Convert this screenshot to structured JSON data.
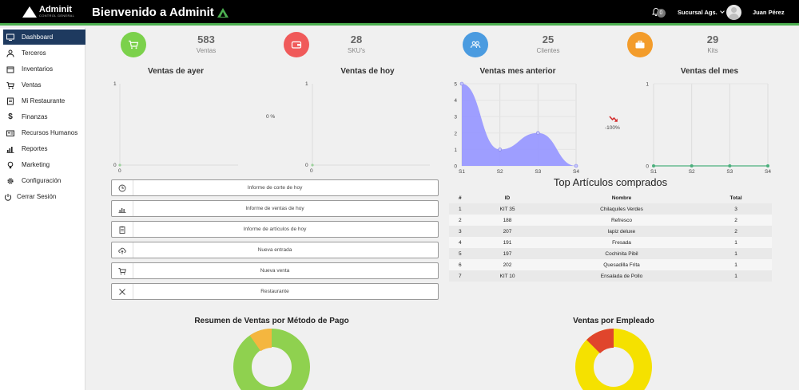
{
  "header": {
    "logo_name": "Adminit",
    "logo_sub": "CONTROL GENERAL",
    "welcome": "Bienvenido a Adminit",
    "notifications": "0",
    "branch": "Sucursal Ags.",
    "user": "Juan Pérez"
  },
  "sidebar": {
    "items": [
      {
        "label": "Dashboard",
        "icon": "monitor-icon"
      },
      {
        "label": "Terceros",
        "icon": "user-icon"
      },
      {
        "label": "Inventarios",
        "icon": "box-icon"
      },
      {
        "label": "Ventas",
        "icon": "cart-icon"
      },
      {
        "label": "Mi Restaurante",
        "icon": "book-icon"
      },
      {
        "label": "Finanzas",
        "icon": "dollar-icon"
      },
      {
        "label": "Recursos Humanos",
        "icon": "id-card-icon"
      },
      {
        "label": "Reportes",
        "icon": "bar-chart-icon"
      },
      {
        "label": "Marketing",
        "icon": "bulb-icon"
      },
      {
        "label": "Configuración",
        "icon": "gear-icon"
      },
      {
        "label": "Cerrar Sesión",
        "icon": "power-icon"
      }
    ]
  },
  "stats": [
    {
      "value": "583",
      "label": "Ventas",
      "color": "#7bd14b",
      "icon": "cart-icon"
    },
    {
      "value": "28",
      "label": "SKU's",
      "color": "#f05a5a",
      "icon": "wallet-icon"
    },
    {
      "value": "25",
      "label": "Clientes",
      "color": "#4a9be0",
      "icon": "users-icon"
    },
    {
      "value": "29",
      "label": "Kits",
      "color": "#f39c2b",
      "icon": "briefcase-icon"
    }
  ],
  "charts": {
    "ayer": {
      "title": "Ventas de ayer",
      "y_top": "1",
      "y_bottom": "0",
      "x_label": "0"
    },
    "hoy": {
      "title": "Ventas de hoy",
      "y_top": "1",
      "y_bottom": "0",
      "x_label": "0"
    },
    "pct_change_label": "0 %",
    "mes_anterior": {
      "title": "Ventas mes anterior",
      "y_ticks": [
        "5",
        "4",
        "3",
        "2",
        "1",
        "0"
      ]
    },
    "mes": {
      "title": "Ventas del mes",
      "y_ticks": [
        "1",
        "0"
      ]
    },
    "trend_label": "-100%"
  },
  "chart_data": [
    {
      "type": "area",
      "title": "Ventas mes anterior",
      "categories": [
        "S1",
        "S2",
        "S3",
        "S4"
      ],
      "values": [
        5,
        1,
        2,
        0
      ],
      "ylim": [
        0,
        5
      ],
      "color": "#9999ff"
    },
    {
      "type": "line",
      "title": "Ventas del mes",
      "categories": [
        "S1",
        "S2",
        "S3",
        "S4"
      ],
      "values": [
        0,
        0,
        0,
        0
      ],
      "ylim": [
        0,
        1
      ],
      "color": "#4caf7d"
    }
  ],
  "buttons": [
    {
      "label": "Informe de corte de hoy",
      "icon": "clock-icon"
    },
    {
      "label": "Informe de ventas de hoy",
      "icon": "bar-chart-icon"
    },
    {
      "label": "Informe de artículos de hoy",
      "icon": "clipboard-icon"
    },
    {
      "label": "Nueva entrada",
      "icon": "cloud-upload-icon"
    },
    {
      "label": "Nueva venta",
      "icon": "cart-icon"
    },
    {
      "label": "Restaurante",
      "icon": "utensils-icon"
    }
  ],
  "top": {
    "title": "Top Artículos comprados",
    "headers": [
      "#",
      "ID",
      "Nombre",
      "Total"
    ],
    "rows": [
      [
        "1",
        "KIT 35",
        "Chilaquiles Verdes",
        "3"
      ],
      [
        "2",
        "188",
        "Refresco",
        "2"
      ],
      [
        "3",
        "207",
        "lapiz deluxe",
        "2"
      ],
      [
        "4",
        "191",
        "Fresada",
        "1"
      ],
      [
        "5",
        "197",
        "Cochinita Pibil",
        "1"
      ],
      [
        "6",
        "202",
        "Quesadilla Frita",
        "1"
      ],
      [
        "7",
        "KIT 10",
        "Ensalada de Pollo",
        "1"
      ]
    ]
  },
  "sections": {
    "metodo_pago": "Resumen de Ventas por Método de Pago",
    "empleado": "Ventas por Empleado"
  }
}
